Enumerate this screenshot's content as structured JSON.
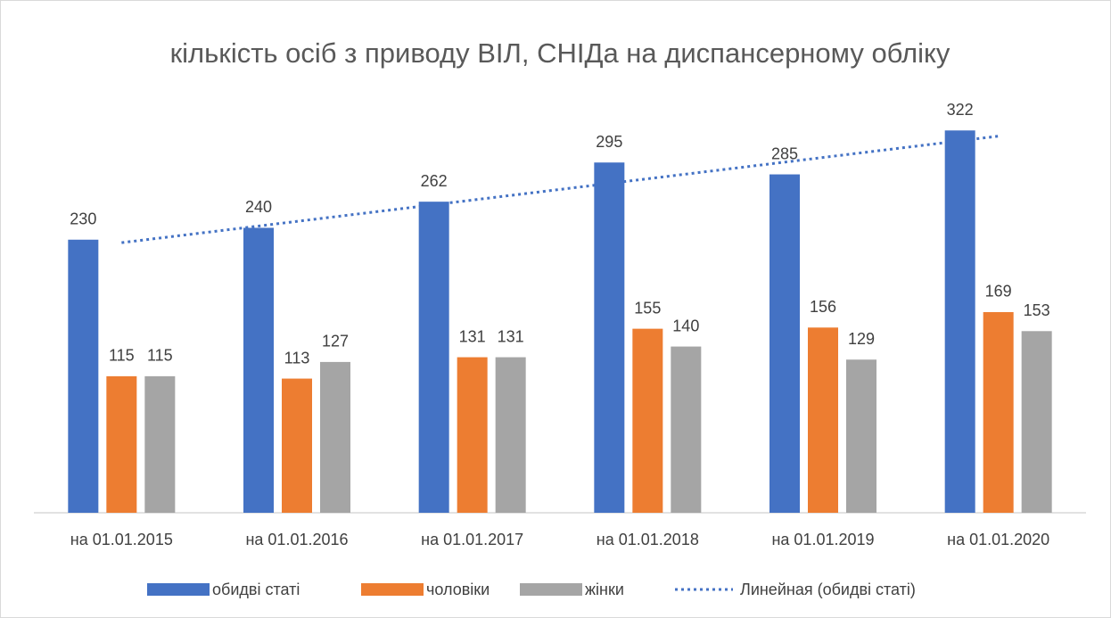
{
  "chart_data": {
    "type": "bar",
    "title": "кількість осіб з приводу ВІЛ, СНІДа на диспансерному обліку",
    "categories": [
      "на 01.01.2015",
      "на 01.01.2016",
      "на 01.01.2017",
      "на 01.01.2018",
      "на 01.01.2019",
      "на 01.01.2020"
    ],
    "series": [
      {
        "name": "обидві статі",
        "color": "#4472c4",
        "values": [
          230,
          240,
          262,
          295,
          285,
          322
        ]
      },
      {
        "name": "чоловіки",
        "color": "#ed7d31",
        "values": [
          115,
          113,
          131,
          155,
          156,
          169
        ]
      },
      {
        "name": "жінки",
        "color": "#a5a5a5",
        "values": [
          115,
          127,
          131,
          140,
          129,
          153
        ]
      }
    ],
    "trendline": {
      "name": "Линейная (обидві статі)",
      "color": "#4472c4",
      "style": "dotted"
    },
    "ylim": [
      0,
      350
    ],
    "grid": false,
    "legend": "bottom"
  }
}
